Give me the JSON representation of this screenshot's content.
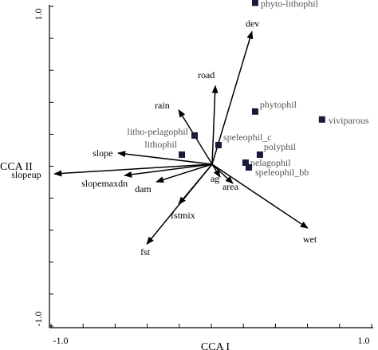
{
  "chart_data": {
    "type": "scatter",
    "title": "",
    "xlabel": "CCA I",
    "ylabel": "CCA II",
    "xlim": [
      -1.0,
      1.0
    ],
    "ylim": [
      -1.0,
      1.0
    ],
    "x_ticks": [
      "-1.0",
      "1.0"
    ],
    "y_ticks": [
      "1.0",
      "-1.0"
    ],
    "grid": false,
    "vectors": [
      {
        "label": "dev",
        "x": 0.25,
        "y": 0.83
      },
      {
        "label": "road",
        "x": 0.02,
        "y": 0.49
      },
      {
        "label": "rain",
        "x": -0.21,
        "y": 0.34
      },
      {
        "label": "slope",
        "x": -0.59,
        "y": 0.07
      },
      {
        "label": "slopeup",
        "x": -0.99,
        "y": -0.06
      },
      {
        "label": "slopemaxdn",
        "x": -0.55,
        "y": -0.07
      },
      {
        "label": "dam",
        "x": -0.35,
        "y": -0.11
      },
      {
        "label": "fst",
        "x": -0.41,
        "y": -0.5
      },
      {
        "label": "fstmix",
        "x": -0.21,
        "y": -0.25
      },
      {
        "label": "ag",
        "x": 0.05,
        "y": -0.08
      },
      {
        "label": "area",
        "x": 0.13,
        "y": -0.12
      },
      {
        "label": "wet",
        "x": 0.6,
        "y": -0.4
      }
    ],
    "species": [
      {
        "label": "phyto-lithophil",
        "x": 0.27,
        "y": 1.01
      },
      {
        "label": "phytophil",
        "x": 0.27,
        "y": 0.33
      },
      {
        "label": "viviparous",
        "x": 0.69,
        "y": 0.28
      },
      {
        "label": "litho-pelagophil",
        "x": -0.11,
        "y": 0.18
      },
      {
        "label": "speleophil_c",
        "x": 0.04,
        "y": 0.12
      },
      {
        "label": "lithophil",
        "x": -0.19,
        "y": 0.06
      },
      {
        "label": "polyphil",
        "x": 0.3,
        "y": 0.06
      },
      {
        "label": "pelagophil",
        "x": 0.21,
        "y": 0.01
      },
      {
        "label": "speleophil_bb",
        "x": 0.23,
        "y": -0.02
      }
    ]
  }
}
